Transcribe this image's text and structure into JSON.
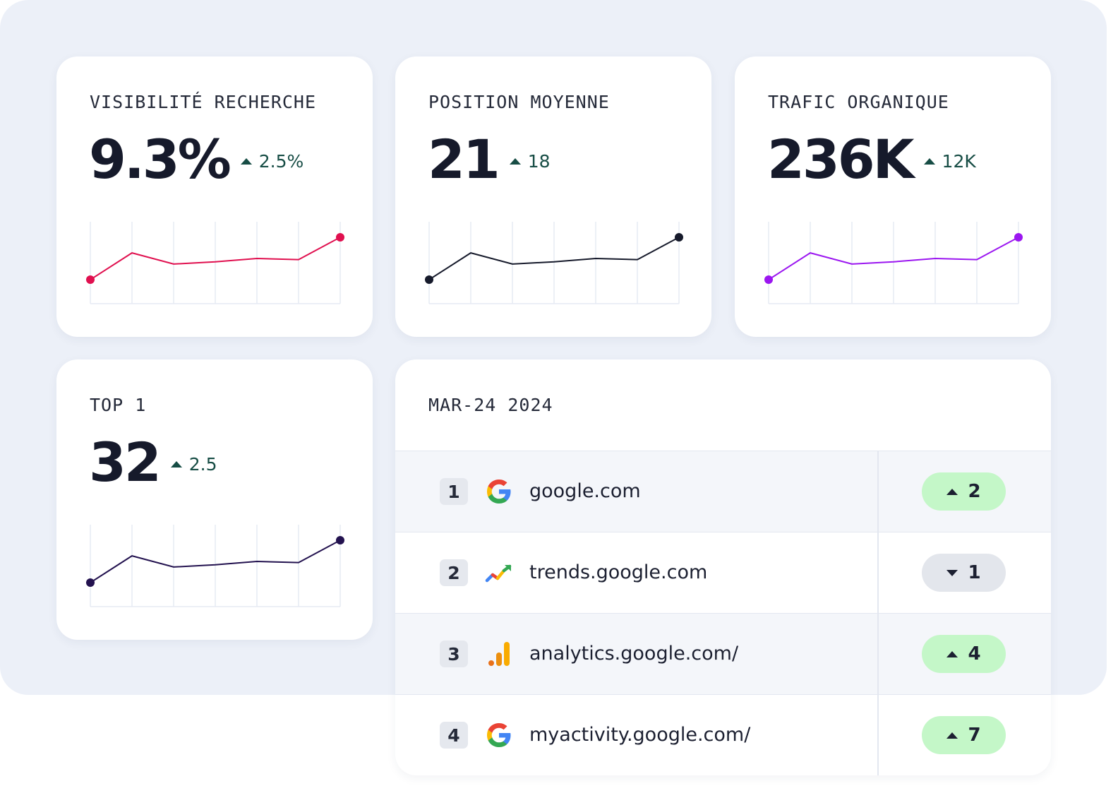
{
  "cards": {
    "visibility": {
      "title": "VISIBILITÉ RECHERCHE",
      "value": "9.3%",
      "delta": "2.5%",
      "color": "#e0104f"
    },
    "position": {
      "title": "POSITION MOYENNE",
      "value": "21",
      "delta": "18",
      "color": "#161a2b"
    },
    "traffic": {
      "title": "TRAFIC ORGANIQUE",
      "value": "236K",
      "delta": "12K",
      "color": "#9b16f0"
    },
    "top1": {
      "title": "TOP 1",
      "value": "32",
      "delta": "2.5",
      "color": "#23124f"
    }
  },
  "sparkline_values": [
    0,
    0.48,
    0.28,
    0.32,
    0.38,
    0.36,
    0.76
  ],
  "table": {
    "title": "MAR-24 2024",
    "rows": [
      {
        "rank": "1",
        "icon": "google-icon",
        "domain": "google.com",
        "change": "2",
        "direction": "up"
      },
      {
        "rank": "2",
        "icon": "trends-icon",
        "domain": "trends.google.com",
        "change": "1",
        "direction": "down"
      },
      {
        "rank": "3",
        "icon": "analytics-icon",
        "domain": "analytics.google.com/",
        "change": "4",
        "direction": "up"
      },
      {
        "rank": "4",
        "icon": "google-icon",
        "domain": "myactivity.google.com/",
        "change": "7",
        "direction": "up"
      }
    ]
  }
}
